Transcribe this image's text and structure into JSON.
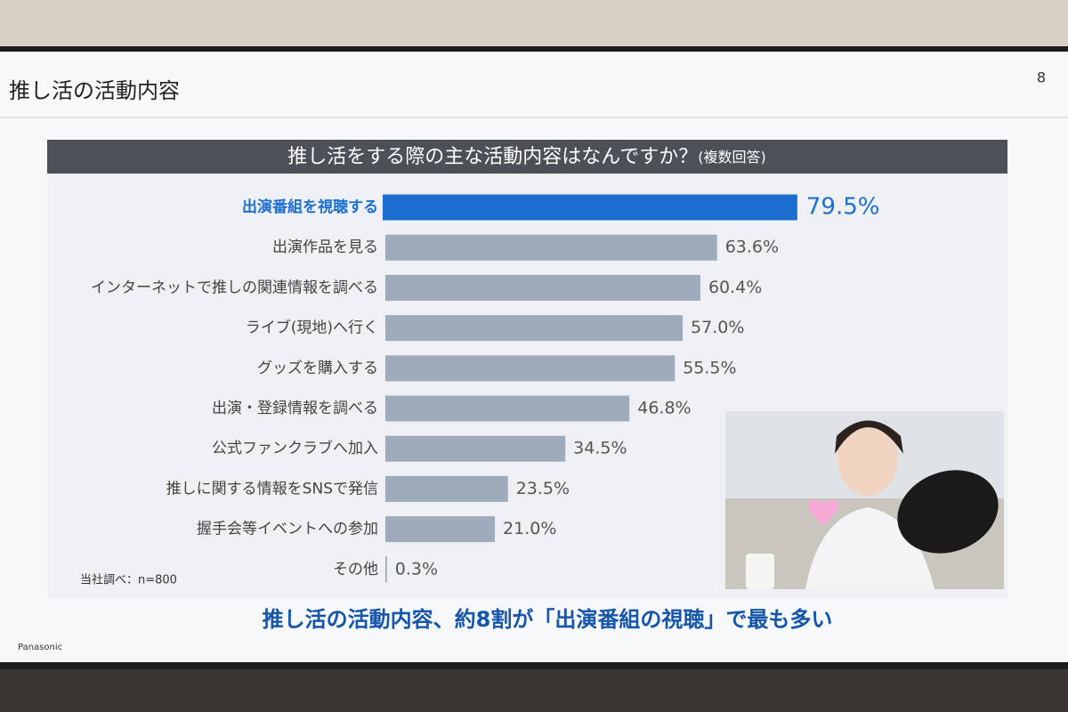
{
  "header": {
    "title": "推し活の活動内容",
    "page": "8"
  },
  "chart_data": {
    "type": "bar",
    "orientation": "horizontal",
    "title": "推し活をする際の主な活動内容はなんですか？",
    "subtitle": "(複数回答)",
    "categories": [
      "出演番組を視聴する",
      "出演作品を見る",
      "インターネットで推しの関連情報を調べる",
      "ライブ(現地)へ行く",
      "グッズを購入する",
      "出演・登録情報を調べる",
      "公式ファンクラブへ加入",
      "推しに関する情報をSNSで発信",
      "握手会等イベントへの参加",
      "その他"
    ],
    "values": [
      79.5,
      63.6,
      60.4,
      57.0,
      55.5,
      46.8,
      34.5,
      23.5,
      21.0,
      0.3
    ],
    "value_labels": [
      "79.5%",
      "63.6%",
      "60.4%",
      "57.0%",
      "55.5%",
      "46.8%",
      "34.5%",
      "23.5%",
      "21.0%",
      "0.3%"
    ],
    "colors": [
      "#1c6fd1",
      "#9eabba",
      "#9eabba",
      "#9eabba",
      "#9eabba",
      "#9eabba",
      "#9eabba",
      "#9eabba",
      "#9eabba",
      "#9eabba"
    ],
    "note": "当社調べ：n=800"
  },
  "footer": {
    "conclusion": "推し活の活動内容、約8割が「出演番組の視聴」で最も多い",
    "brand": "Panasonic"
  }
}
